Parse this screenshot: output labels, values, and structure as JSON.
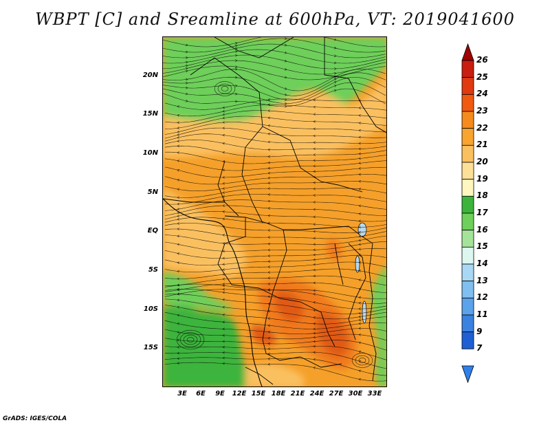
{
  "title": "WBPT [C] and Sreamline at 600hPa, VT: 2019041600",
  "footer": "GrADS: IGES/COLA",
  "map": {
    "lat_labels": [
      "20N",
      "15N",
      "10N",
      "5N",
      "EQ",
      "5S",
      "10S",
      "15S"
    ],
    "lon_labels": [
      "3E",
      "6E",
      "9E",
      "12E",
      "15E",
      "18E",
      "21E",
      "24E",
      "27E",
      "30E",
      "33E"
    ]
  },
  "colorbar": {
    "levels": [
      "26",
      "25",
      "24",
      "23",
      "22",
      "21",
      "20",
      "19",
      "18",
      "17",
      "16",
      "15",
      "14",
      "13",
      "12",
      "11",
      "9",
      "7"
    ],
    "colors": [
      "#a00000",
      "#c81e10",
      "#e03a10",
      "#f05a10",
      "#f58a1e",
      "#f8a430",
      "#fac060",
      "#fde098",
      "#fff6c0",
      "#3cb43c",
      "#6ecf5a",
      "#a6e39a",
      "#def6f0",
      "#a8d8f4",
      "#80bff0",
      "#5aa2ea",
      "#3a82e0",
      "#1e5fd4",
      "#2f80ea"
    ]
  },
  "colors": {
    "green_dark": "#3cb43c",
    "green_mid": "#6ecf5a",
    "green_light": "#a6e39a",
    "orange": "#f5a02a",
    "light_orange": "#fac060",
    "dark_orange": "#f07a1e",
    "red": "#e05a18"
  }
}
